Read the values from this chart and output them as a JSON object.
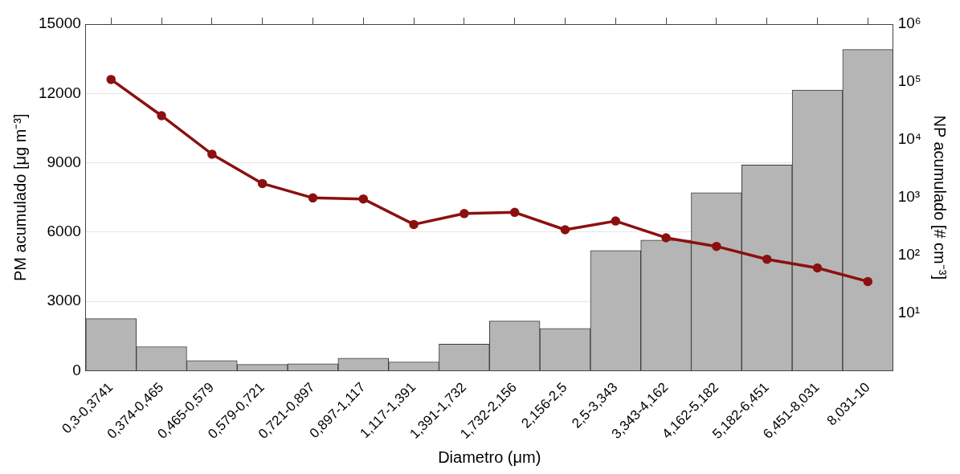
{
  "chart_data": {
    "type": "bar",
    "xlabel": "Diametro (μm)",
    "ylabel": "PM acumulado [μg m⁻³]",
    "y2label": "NP acumulado [# cm⁻³]",
    "categories": [
      "0,3-0,3741",
      "0,374-0,465",
      "0,465-0,579",
      "0,579-0,721",
      "0,721-0,897",
      "0,897-1,117",
      "1,117-1,391",
      "1,391-1,732",
      "1,732-2,156",
      "2,156-2,5",
      "2,5-3,343",
      "3,343-4,162",
      "4,162-5,182",
      "5,182-6,451",
      "6,451-8,031",
      "8,031-10"
    ],
    "series": [
      {
        "color": "#b5b5b5",
        "values": [
          2250,
          1040,
          440,
          270,
          300,
          540,
          380,
          1150,
          2150,
          1830,
          5200,
          5650,
          7700,
          8900,
          12150,
          13900
        ]
      },
      {
        "type": "line",
        "axis": "y2",
        "color": "#8c1010",
        "values": [
          110000,
          26000,
          5600,
          1740,
          980,
          940,
          340,
          525,
          550,
          275,
          390,
          200,
          142,
          85,
          60,
          35
        ]
      }
    ],
    "ylim": [
      0,
      15000
    ],
    "yticks": [
      0,
      3000,
      6000,
      9000,
      12000,
      15000
    ],
    "y2lim": [
      1,
      1000000
    ],
    "y2ticks": [
      {
        "value": 10,
        "label": "10¹"
      },
      {
        "value": 100,
        "label": "10²"
      },
      {
        "value": 1000,
        "label": "10³"
      },
      {
        "value": 10000,
        "label": "10⁴"
      },
      {
        "value": 100000,
        "label": "10⁵"
      },
      {
        "value": 1000000,
        "label": "10⁶"
      }
    ],
    "log": "y2",
    "grid": "y",
    "marker": "circle"
  }
}
